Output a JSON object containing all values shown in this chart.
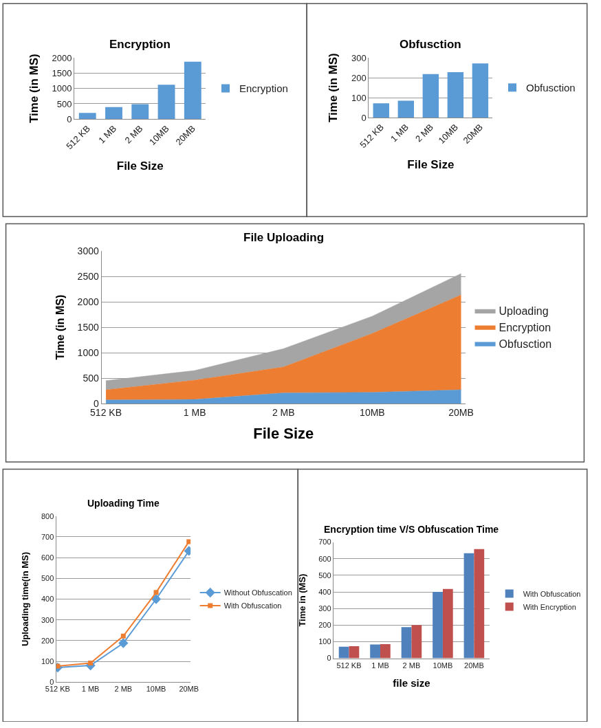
{
  "chart_data": [
    {
      "type": "bar",
      "title": "Encryption",
      "xlabel": "File Size",
      "ylabel": "Time (in MS)",
      "categories": [
        "512 KB",
        "1 MB",
        "2 MB",
        "10MB",
        "20MB"
      ],
      "series": [
        {
          "name": "Encryption",
          "color": "#5b9bd5",
          "values": [
            200,
            390,
            490,
            1120,
            1870
          ]
        }
      ],
      "ylim": [
        0,
        2000
      ],
      "yticks": [
        0,
        500,
        1000,
        1500,
        2000
      ],
      "grid": "y",
      "legend": "right"
    },
    {
      "type": "bar",
      "title": "Obfusction",
      "xlabel": "File Size",
      "ylabel": "Time (in MS)",
      "categories": [
        "512 KB",
        "1 MB",
        "2 MB",
        "10MB",
        "20MB"
      ],
      "series": [
        {
          "name": "Obfusction",
          "color": "#5b9bd5",
          "values": [
            72,
            85,
            218,
            228,
            272
          ]
        }
      ],
      "ylim": [
        0,
        300
      ],
      "yticks": [
        0,
        100,
        200,
        300
      ],
      "grid": "y",
      "legend": "right"
    },
    {
      "type": "area",
      "stacked": true,
      "title": "File Uploading",
      "xlabel": "File Size",
      "ylabel": "Time (in MS)",
      "categories": [
        "512 KB",
        "1 MB",
        "2 MB",
        "10MB",
        "20MB"
      ],
      "series": [
        {
          "name": "Obfusction",
          "color": "#5b9bd5",
          "values": [
            70,
            80,
            210,
            220,
            270
          ]
        },
        {
          "name": "Encryption",
          "color": "#ed7d31",
          "values": [
            200,
            380,
            510,
            1160,
            1870
          ]
        },
        {
          "name": "Uploading",
          "color": "#a5a5a5",
          "values": [
            180,
            190,
            360,
            340,
            420
          ]
        }
      ],
      "ylim": [
        0,
        3000
      ],
      "yticks": [
        0,
        500,
        1000,
        1500,
        2000,
        2500,
        3000
      ],
      "grid": "y",
      "legend": "right"
    },
    {
      "type": "line",
      "title": "Uploading Time",
      "ylabel": "Uploading time(in MS)",
      "categories": [
        "512 KB",
        "1 MB",
        "2 MB",
        "10MB",
        "20MB"
      ],
      "series": [
        {
          "name": "Without Obfuscation",
          "color": "#5b9bd5",
          "marker": "diamond",
          "values": [
            70,
            80,
            188,
            400,
            632
          ]
        },
        {
          "name": "With Obfuscation",
          "color": "#ed7d31",
          "marker": "square",
          "values": [
            77,
            92,
            222,
            432,
            677
          ]
        }
      ],
      "ylim": [
        0,
        800
      ],
      "yticks": [
        0,
        100,
        200,
        300,
        400,
        500,
        600,
        700,
        800
      ],
      "grid": "y",
      "legend": "right"
    },
    {
      "type": "bar",
      "title": "Encryption time V/S Obfuscation Time",
      "xlabel": "file size",
      "ylabel": "Time in (MS)",
      "categories": [
        "512 KB",
        "1 MB",
        "2 MB",
        "10MB",
        "20MB"
      ],
      "series": [
        {
          "name": "With Obfuscation",
          "color": "#4f81bd",
          "values": [
            70,
            83,
            188,
            400,
            633
          ]
        },
        {
          "name": "With Encryption",
          "color": "#c0504d",
          "values": [
            73,
            85,
            200,
            418,
            658
          ]
        }
      ],
      "ylim": [
        0,
        700
      ],
      "yticks": [
        0,
        100,
        200,
        300,
        400,
        500,
        600,
        700
      ],
      "grid": "y",
      "legend": "right"
    }
  ]
}
